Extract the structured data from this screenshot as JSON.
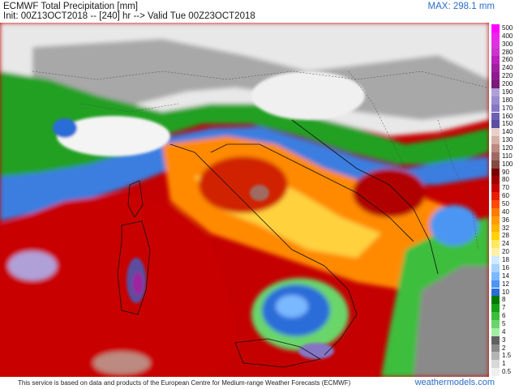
{
  "header": {
    "title": "ECMWF Total Precipitation [mm]",
    "subtitle": "Init: 00Z13OCT2018 -- [240] hr --> Valid Tue 00Z23OCT2018",
    "max_label": "MAX: 298.1 mm"
  },
  "legend": {
    "items": [
      {
        "label": "500",
        "color": "#ff00ff"
      },
      {
        "label": "400",
        "color": "#ee22ee"
      },
      {
        "label": "300",
        "color": "#dd33dd"
      },
      {
        "label": "280",
        "color": "#cc33cc"
      },
      {
        "label": "260",
        "color": "#bb22bb"
      },
      {
        "label": "240",
        "color": "#a020a0"
      },
      {
        "label": "220",
        "color": "#8e1a8e"
      },
      {
        "label": "200",
        "color": "#7a1a7a"
      },
      {
        "label": "190",
        "color": "#b0a0d8"
      },
      {
        "label": "180",
        "color": "#9a8ad0"
      },
      {
        "label": "170",
        "color": "#8576c4"
      },
      {
        "label": "160",
        "color": "#6f60b4"
      },
      {
        "label": "150",
        "color": "#5c4ea0"
      },
      {
        "label": "140",
        "color": "#e8d0c8"
      },
      {
        "label": "130",
        "color": "#d4b0a6"
      },
      {
        "label": "120",
        "color": "#bc8a80"
      },
      {
        "label": "110",
        "color": "#a06a62"
      },
      {
        "label": "100",
        "color": "#844a44"
      },
      {
        "label": "90",
        "color": "#7a0000"
      },
      {
        "label": "80",
        "color": "#a00000"
      },
      {
        "label": "70",
        "color": "#c80000"
      },
      {
        "label": "60",
        "color": "#e81e00"
      },
      {
        "label": "50",
        "color": "#ff4a00"
      },
      {
        "label": "40",
        "color": "#ff7a00"
      },
      {
        "label": "36",
        "color": "#ff9c00"
      },
      {
        "label": "32",
        "color": "#ffb400"
      },
      {
        "label": "28",
        "color": "#ffd200"
      },
      {
        "label": "24",
        "color": "#ffe85a"
      },
      {
        "label": "20",
        "color": "#fff0a8"
      },
      {
        "label": "18",
        "color": "#d0eaff"
      },
      {
        "label": "16",
        "color": "#a8d2ff"
      },
      {
        "label": "14",
        "color": "#7ab8ff"
      },
      {
        "label": "12",
        "color": "#4c96f2"
      },
      {
        "label": "10",
        "color": "#2a6cd8"
      },
      {
        "label": "8",
        "color": "#007a00"
      },
      {
        "label": "7",
        "color": "#16a016"
      },
      {
        "label": "6",
        "color": "#3cbe3c"
      },
      {
        "label": "5",
        "color": "#6ad66a"
      },
      {
        "label": "4",
        "color": "#a4eca4"
      },
      {
        "label": "3",
        "color": "#606060"
      },
      {
        "label": "2",
        "color": "#8a8a8a"
      },
      {
        "label": "1.5",
        "color": "#b4b4b4"
      },
      {
        "label": "1",
        "color": "#d8d8d8"
      },
      {
        "label": "0.5",
        "color": "#f0f0f0"
      }
    ]
  },
  "footer": {
    "disclaimer": "This service is based on data and products of the European Centre for Medium-range Weather Forecasts (ECMWF)",
    "brand": "weathermodels.com"
  }
}
